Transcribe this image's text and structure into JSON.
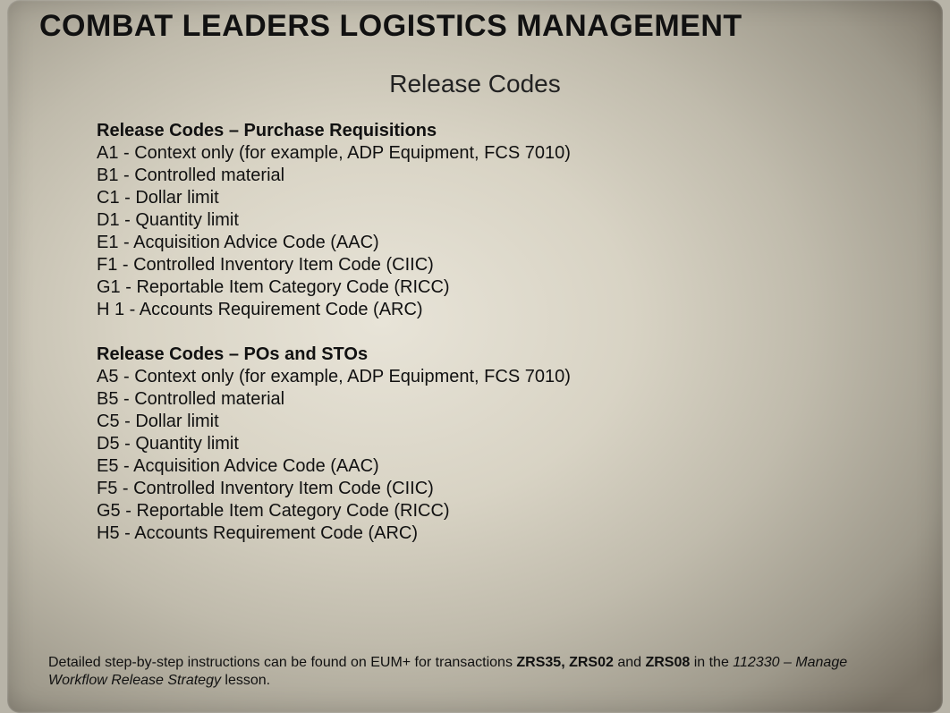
{
  "title": "COMBAT LEADERS LOGISTICS MANAGEMENT",
  "subtitle": "Release Codes",
  "section1": {
    "heading": "Release Codes – Purchase Requisitions",
    "items": [
      "A1 - Context only (for example, ADP Equipment, FCS 7010)",
      "B1 - Controlled material",
      "C1 - Dollar limit",
      "D1 - Quantity limit",
      "E1 - Acquisition Advice Code (AAC)",
      "F1 - Controlled Inventory Item Code (CIIC)",
      "G1 - Reportable Item Category Code (RICC)",
      "H 1 - Accounts Requirement Code (ARC)"
    ]
  },
  "section2": {
    "heading": "Release Codes – POs and STOs",
    "items": [
      "A5 - Context only (for example, ADP Equipment, FCS 7010)",
      "B5 - Controlled material",
      "C5 - Dollar limit",
      "D5 - Quantity limit",
      "E5 - Acquisition Advice Code (AAC)",
      "F5 - Controlled Inventory Item Code (CIIC)",
      "G5 - Reportable Item Category Code (RICC)",
      "H5 - Accounts Requirement Code (ARC)"
    ]
  },
  "footer": {
    "prefix": "Detailed step-by-step instructions can be found on EUM+ for transactions ",
    "bold1": "ZRS35, ZRS02",
    "mid1": " and ",
    "bold2": "ZRS08",
    "mid2": " in the ",
    "italic": "112330 – Manage Workflow Release Strategy",
    "suffix": " lesson."
  },
  "colors": {
    "text": "#111111",
    "bg_center": "#e8e4d8",
    "bg_edge": "#7c7568"
  }
}
